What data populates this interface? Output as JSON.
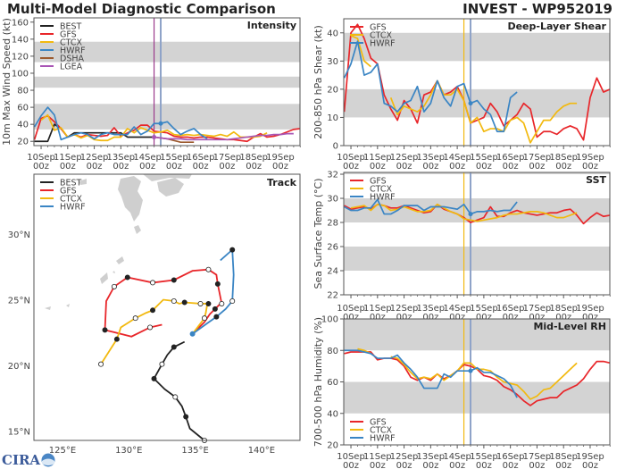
{
  "header": {
    "title": "Multi-Model Diagnostic Comparison",
    "storm": "INVEST - WP952019"
  },
  "logo": {
    "text": "CIRA"
  },
  "colors": {
    "BEST": "#222222",
    "GFS": "#e8262a",
    "CTCX": "#f2b90f",
    "HWRF": "#3a85c4",
    "DSHA": "#9c5a2e",
    "LGEA": "#a855b5",
    "band": "#d3d3d3",
    "current_line": "#8fa3c8"
  },
  "time_ticks": [
    "10Sep",
    "11Sep",
    "12Sep",
    "13Sep",
    "14Sep",
    "15Sep",
    "16Sep",
    "17Sep",
    "18Sep",
    "19Sep"
  ],
  "time_tick_hour": "00z",
  "chart_data": [
    {
      "id": "intensity",
      "type": "line",
      "title": "Intensity",
      "ylabel": "10m Max Wind Speed (kt)",
      "ylim": [
        15,
        165
      ],
      "yticks": [
        20,
        40,
        60,
        80,
        100,
        120,
        140,
        160
      ],
      "bands": [
        [
          34,
          64
        ],
        [
          83,
          96
        ],
        [
          113,
          137
        ]
      ],
      "xlim": [
        "09Sep 18z",
        "19Sep 18z"
      ],
      "vlines": [
        {
          "time": "14Sep 06z",
          "color": "#9b3a8c"
        },
        {
          "time": "14Sep 12z",
          "color": "#8fa3c8"
        }
      ],
      "legend": [
        "BEST",
        "GFS",
        "CTCX",
        "HWRF",
        "DSHA",
        "LGEA"
      ],
      "legend_position": "top-left",
      "series": [
        {
          "name": "BEST",
          "start": "09Sep 18z",
          "interval_hours": 6,
          "values": [
            20,
            20,
            20,
            40,
            35,
            25,
            30,
            30,
            30,
            30,
            30,
            30,
            30,
            30,
            25,
            25,
            25,
            25,
            25
          ]
        },
        {
          "name": "GFS",
          "start": "09Sep 18z",
          "interval_hours": 6,
          "values": [
            22,
            47,
            50,
            43,
            35,
            25,
            28,
            25,
            28,
            27,
            26,
            27,
            36,
            26,
            30,
            33,
            39,
            39,
            32,
            31,
            30,
            26,
            25,
            25,
            24,
            25,
            25,
            24,
            23,
            22,
            22,
            21,
            20,
            25,
            29,
            25,
            26,
            28,
            31,
            34,
            35
          ]
        },
        {
          "name": "CTCX",
          "start": "10Sep 00z",
          "interval_hours": 6,
          "values": [
            45,
            51,
            33,
            36,
            25,
            28,
            24,
            27,
            22,
            21,
            21,
            25,
            25,
            35,
            30,
            36,
            33,
            30,
            31,
            33,
            28,
            27,
            28,
            27,
            28,
            27,
            26,
            28,
            26,
            31,
            25,
            25,
            25,
            26,
            30
          ]
        },
        {
          "name": "HWRF",
          "start": "09Sep 18z",
          "interval_hours": 6,
          "marker": "14Sep 12z",
          "values": [
            37,
            50,
            60,
            51,
            22,
            25,
            28,
            30,
            28,
            23,
            28,
            30,
            28,
            28,
            28,
            37,
            28,
            32,
            41,
            41,
            43,
            35,
            28,
            32,
            35,
            28,
            23
          ]
        },
        {
          "name": "DSHA",
          "start": "14Sep 06z",
          "interval_hours": 6,
          "values": [
            25,
            24,
            23,
            21,
            19,
            19,
            19
          ]
        },
        {
          "name": "LGEA",
          "start": "14Sep 06z",
          "interval_hours": 6,
          "marker": "14Sep 06z",
          "values": [
            25,
            24,
            23,
            23,
            23,
            22,
            22,
            22,
            22,
            22,
            22,
            22,
            23,
            24,
            25,
            26,
            27,
            27,
            28,
            28,
            29,
            29
          ]
        }
      ]
    },
    {
      "id": "shear",
      "type": "line",
      "title": "Deep-Layer Shear",
      "ylabel": "200-850 hPa Shear (kt)",
      "ylim": [
        0,
        45
      ],
      "yticks": [
        0,
        10,
        20,
        30,
        40
      ],
      "bands": [
        [
          10,
          20
        ],
        [
          30,
          40
        ]
      ],
      "xlim": [
        "09Sep 18z",
        "19Sep 18z"
      ],
      "vlines": [
        {
          "time": "14Sep 06z",
          "color": "#f2b90f"
        },
        {
          "time": "14Sep 12z",
          "color": "#8fa3c8"
        }
      ],
      "legend": [
        "GFS",
        "CTCX",
        "HWRF"
      ],
      "legend_position": "top-left",
      "series": [
        {
          "name": "GFS",
          "start": "09Sep 18z",
          "interval_hours": 6,
          "values": [
            12,
            40,
            43,
            38,
            31,
            29,
            18,
            13,
            9,
            16,
            13,
            8,
            18,
            19,
            23,
            18,
            19,
            21,
            16,
            8,
            9,
            10,
            15,
            12,
            7,
            9,
            11,
            15,
            13,
            3,
            5,
            5,
            4,
            6,
            7,
            6,
            2,
            17,
            24,
            19,
            20
          ]
        },
        {
          "name": "CTCX",
          "start": "10Sep 00z",
          "interval_hours": 6,
          "values": [
            39,
            38,
            30,
            28,
            null,
            null,
            17,
            11,
            14,
            13,
            12,
            14,
            18,
            23,
            18,
            18,
            20,
            16,
            8,
            10,
            5,
            6,
            6,
            5,
            9,
            10,
            8,
            1,
            5,
            9,
            9,
            12,
            14,
            15,
            15
          ]
        },
        {
          "name": "HWRF",
          "start": "09Sep 18z",
          "interval_hours": 6,
          "marker": "14Sep 12z",
          "values": [
            24,
            29,
            37,
            25,
            26,
            29,
            15,
            14,
            12,
            15,
            16,
            21,
            12,
            15,
            23,
            17,
            14,
            21,
            22,
            15,
            16,
            13,
            11,
            5,
            5,
            17,
            19
          ]
        }
      ]
    },
    {
      "id": "sst",
      "type": "line",
      "title": "SST",
      "ylabel": "Sea Surface Temp (°C)",
      "ylim": [
        22,
        32.15
      ],
      "yticks": [
        22,
        24,
        26,
        28,
        30,
        32
      ],
      "bands": [
        [
          24,
          26
        ],
        [
          28,
          30
        ],
        [
          32,
          34
        ]
      ],
      "xlim": [
        "09Sep 18z",
        "19Sep 18z"
      ],
      "vlines": [
        {
          "time": "14Sep 06z",
          "color": "#f2b90f"
        },
        {
          "time": "14Sep 12z",
          "color": "#8fa3c8"
        }
      ],
      "legend": [
        "GFS",
        "CTCX",
        "HWRF"
      ],
      "legend_position": "top-left",
      "series": [
        {
          "name": "GFS",
          "start": "09Sep 18z",
          "interval_hours": 6,
          "values": [
            29.4,
            29.1,
            29.2,
            29.3,
            29.1,
            29.5,
            29.4,
            29.2,
            29.2,
            29.4,
            29.2,
            29.0,
            28.8,
            28.9,
            29.5,
            29.1,
            28.9,
            28.7,
            28.4,
            28.0,
            28.2,
            28.4,
            29.3,
            28.5,
            28.5,
            28.8,
            29.0,
            28.8,
            28.7,
            28.6,
            28.7,
            28.8,
            28.8,
            29.0,
            29.1,
            28.6,
            27.9,
            28.4,
            28.8,
            28.5,
            28.6
          ]
        },
        {
          "name": "CTCX",
          "start": "10Sep 00z",
          "interval_hours": 6,
          "values": [
            29.2,
            29.3,
            29.4,
            29.0,
            29.5,
            29.4,
            29.0,
            29.1,
            29.3,
            29.1,
            28.9,
            28.9,
            29.0,
            29.5,
            29.2,
            28.9,
            28.7,
            28.3,
            28.2,
            28.1,
            28.2,
            28.3,
            28.4,
            28.6,
            28.7,
            28.7,
            28.8,
            28.9,
            28.9,
            28.8,
            28.6,
            28.4,
            28.4,
            28.6,
            28.8
          ]
        },
        {
          "name": "HWRF",
          "start": "09Sep 18z",
          "interval_hours": 6,
          "marker": "14Sep 12z",
          "values": [
            29.3,
            29.0,
            29.0,
            29.2,
            29.2,
            29.9,
            28.7,
            28.7,
            29.0,
            29.4,
            29.4,
            29.4,
            29.0,
            29.3,
            29.3,
            29.3,
            29.2,
            29.1,
            29.5,
            28.7,
            28.9,
            28.9,
            29.0,
            28.9,
            29.0,
            29.0,
            29.7
          ]
        }
      ]
    },
    {
      "id": "rh",
      "type": "line",
      "title": "Mid-Level RH",
      "ylabel": "700-500 hPa Humidity (%)",
      "ylim": [
        20,
        100
      ],
      "yticks": [
        20,
        40,
        60,
        80,
        100
      ],
      "bands": [
        [
          40,
          60
        ],
        [
          80,
          100
        ]
      ],
      "xlim": [
        "09Sep 18z",
        "19Sep 18z"
      ],
      "vlines": [
        {
          "time": "14Sep 06z",
          "color": "#f2b90f"
        },
        {
          "time": "14Sep 12z",
          "color": "#8fa3c8"
        }
      ],
      "legend": [
        "GFS",
        "CTCX",
        "HWRF"
      ],
      "legend_position": "bottom-left",
      "series": [
        {
          "name": "GFS",
          "start": "09Sep 18z",
          "interval_hours": 6,
          "values": [
            78,
            79,
            79,
            79,
            79,
            74,
            75,
            75,
            74,
            70,
            63,
            61,
            63,
            61,
            65,
            62,
            64,
            67,
            71,
            70,
            68,
            64,
            63,
            61,
            57,
            55,
            52,
            48,
            45,
            48,
            49,
            50,
            50,
            54,
            56,
            58,
            62,
            68,
            73,
            73,
            72
          ]
        },
        {
          "name": "CTCX",
          "start": "10Sep 06z",
          "interval_hours": 6,
          "values": [
            81,
            80,
            78,
            null,
            null,
            76,
            75,
            71,
            66,
            62,
            63,
            62,
            65,
            61,
            64,
            67,
            72,
            72,
            68,
            68,
            67,
            63,
            60,
            59,
            58,
            54,
            49,
            51,
            55,
            56,
            60,
            64,
            68,
            72
          ]
        },
        {
          "name": "HWRF",
          "start": "09Sep 18z",
          "interval_hours": 6,
          "marker": "14Sep 12z",
          "values": [
            80,
            80,
            80,
            79,
            78,
            75,
            75,
            75,
            77,
            72,
            68,
            63,
            56,
            56,
            56,
            65,
            63,
            67,
            67,
            67,
            69,
            66,
            66,
            64,
            62,
            58,
            50
          ]
        }
      ]
    },
    {
      "id": "track",
      "type": "line",
      "title": "Track",
      "lon_range": [
        122.85,
        142.9
      ],
      "lat_range": [
        14.3,
        34.55
      ],
      "lon_ticks": [
        125,
        130,
        135,
        140
      ],
      "lat_ticks": [
        15,
        20,
        25,
        30
      ],
      "lon_tick_labels": [
        "125°E",
        "130°E",
        "135°E",
        "140°E"
      ],
      "lat_tick_labels": [
        "15°N",
        "20°N",
        "25°N",
        "30°N"
      ],
      "legend": [
        "BEST",
        "GFS",
        "CTCX",
        "HWRF"
      ],
      "legend_position": "top-left",
      "series": [
        {
          "name": "BEST",
          "points": [
            [
              134.2,
              21.8,
              ""
            ],
            [
              133.4,
              21.4,
              "filled"
            ],
            [
              132.9,
              20.8,
              ""
            ],
            [
              132.5,
              20.1,
              "open"
            ],
            [
              131.9,
              19.0,
              "filled"
            ],
            [
              132.7,
              18.2,
              ""
            ],
            [
              133.5,
              17.6,
              "open"
            ],
            [
              134.0,
              16.9,
              ""
            ],
            [
              134.3,
              16.1,
              "filled"
            ],
            [
              134.6,
              15.2,
              ""
            ],
            [
              135.7,
              14.3,
              "open"
            ]
          ]
        },
        {
          "name": "GFS",
          "points": [
            [
              134.8,
              22.4,
              ""
            ],
            [
              135.7,
              23.3,
              ""
            ],
            [
              136.1,
              23.9,
              ""
            ],
            [
              136.5,
              24.3,
              "filled"
            ],
            [
              136.8,
              24.6,
              ""
            ],
            [
              137.0,
              24.7,
              "open"
            ],
            [
              136.7,
              26.2,
              "filled"
            ],
            [
              136.6,
              26.9,
              ""
            ],
            [
              136.0,
              27.3,
              "open"
            ],
            [
              134.8,
              27.2,
              ""
            ],
            [
              133.4,
              26.5,
              "filled"
            ],
            [
              131.8,
              26.3,
              "open"
            ],
            [
              129.9,
              26.7,
              "filled"
            ],
            [
              128.9,
              26.0,
              "open"
            ],
            [
              128.3,
              24.9,
              ""
            ],
            [
              128.2,
              22.7,
              "filled"
            ],
            [
              130.2,
              22.2,
              ""
            ],
            [
              131.6,
              22.9,
              "open"
            ],
            [
              132.5,
              23.1,
              ""
            ]
          ]
        },
        {
          "name": "CTCX",
          "points": [
            [
              134.8,
              22.4,
              ""
            ],
            [
              135.7,
              23.6,
              "open"
            ],
            [
              135.8,
              24.0,
              ""
            ],
            [
              135.9,
              24.6,
              ""
            ],
            [
              136.0,
              24.7,
              "filled"
            ],
            [
              135.4,
              24.7,
              "open"
            ],
            [
              134.2,
              24.8,
              "filled"
            ],
            [
              133.8,
              24.7,
              ""
            ],
            [
              133.4,
              24.9,
              "open"
            ],
            [
              132.6,
              25.0,
              ""
            ],
            [
              131.8,
              24.2,
              "filled"
            ],
            [
              131.3,
              24.0,
              ""
            ],
            [
              130.5,
              23.6,
              "open"
            ],
            [
              129.4,
              22.9,
              ""
            ],
            [
              129.1,
              22.0,
              "filled"
            ],
            [
              127.9,
              20.1,
              "open"
            ]
          ]
        },
        {
          "name": "HWRF",
          "points": [
            [
              134.8,
              22.4,
              "start"
            ],
            [
              135.9,
              23.2,
              ""
            ],
            [
              136.6,
              23.7,
              "filled"
            ],
            [
              137.3,
              24.3,
              ""
            ],
            [
              137.8,
              24.9,
              "open"
            ],
            [
              137.9,
              26.9,
              ""
            ],
            [
              137.8,
              28.8,
              "filled"
            ],
            [
              136.9,
              28.0,
              ""
            ]
          ]
        }
      ]
    }
  ]
}
